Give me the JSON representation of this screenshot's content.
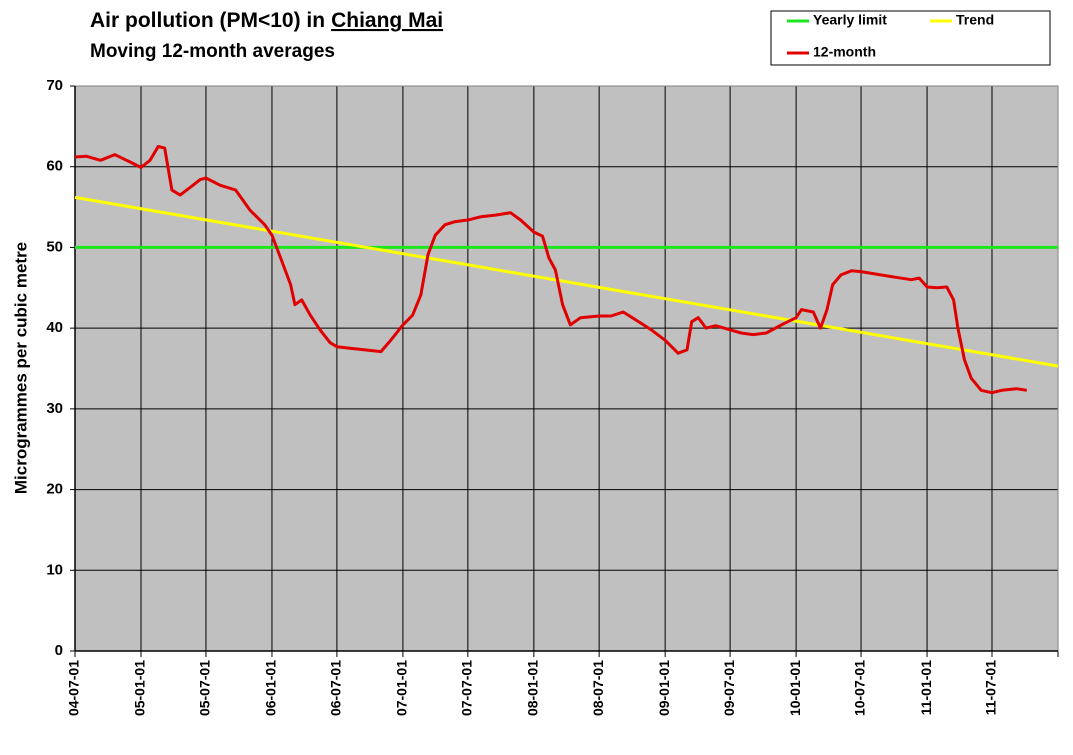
{
  "chart_data": {
    "type": "line",
    "title": "Air pollution (PM<10) in",
    "title_place": "Chiang Mai",
    "subtitle": "Moving 12-month averages",
    "y_label": "Microgrammes per cubic metre",
    "xlim": [
      "04-07-01",
      "12-01-01"
    ],
    "xticks": [
      "04-07-01",
      "05-01-01",
      "05-07-01",
      "06-01-01",
      "06-07-01",
      "07-01-01",
      "07-07-01",
      "08-01-01",
      "08-07-01",
      "09-01-01",
      "09-07-01",
      "10-01-01",
      "10-07-01",
      "11-01-01",
      "11-07-01"
    ],
    "ylim": [
      0,
      70
    ],
    "yticks": [
      0,
      10,
      20,
      30,
      40,
      50,
      60,
      70
    ],
    "grid": true,
    "background": "#c0c0c0",
    "legend": "top-right",
    "series": [
      {
        "name": "Yearly limit",
        "color": "#1ee61e",
        "x": [
          "04-07-01",
          "12-01-01"
        ],
        "values": [
          50,
          50
        ]
      },
      {
        "name": "Trend",
        "color": "#ffff00",
        "x": [
          "04-07-01",
          "12-01-01"
        ],
        "values": [
          56.2,
          35.3
        ]
      },
      {
        "name": "12-month",
        "color": "#e00000",
        "x": [
          "04-07-01",
          "04-08-01",
          "04-09-10",
          "04-10-20",
          "04-12-01",
          "05-01-01",
          "05-01-26",
          "05-02-18",
          "05-03-08",
          "05-03-28",
          "05-04-20",
          "05-05-17",
          "05-06-15",
          "05-07-01",
          "05-08-10",
          "05-09-22",
          "05-11-01",
          "05-12-12",
          "06-01-01",
          "06-01-25",
          "06-02-22",
          "06-03-06",
          "06-03-25",
          "06-04-18",
          "06-05-15",
          "06-06-12",
          "06-07-01",
          "06-08-06",
          "06-09-18",
          "06-11-01",
          "06-11-28",
          "07-01-01",
          "07-01-28",
          "07-02-20",
          "07-03-12",
          "07-04-01",
          "07-04-28",
          "07-05-27",
          "07-07-01",
          "07-08-06",
          "07-09-16",
          "07-10-28",
          "07-11-25",
          "08-01-01",
          "08-01-25",
          "08-02-12",
          "08-03-01",
          "08-03-21",
          "08-04-12",
          "08-05-10",
          "08-07-01",
          "08-08-03",
          "08-09-06",
          "08-10-12",
          "08-11-23",
          "09-01-01",
          "09-02-06",
          "09-03-03",
          "09-03-16",
          "09-04-03",
          "09-04-25",
          "09-05-22",
          "09-07-01",
          "09-08-01",
          "09-09-03",
          "09-10-10",
          "09-11-21",
          "10-01-01",
          "10-01-16",
          "10-02-18",
          "10-03-10",
          "10-03-28",
          "10-04-13",
          "10-05-06",
          "10-06-04",
          "10-07-01",
          "10-08-12",
          "10-10-06",
          "10-11-18",
          "10-12-10",
          "11-01-01",
          "11-01-28",
          "11-02-25",
          "11-03-16",
          "11-03-28",
          "11-04-15",
          "11-05-04",
          "11-06-01",
          "11-07-01",
          "11-07-28",
          "11-09-07",
          "11-10-06"
        ],
        "values": [
          61.2,
          61.3,
          60.8,
          61.5,
          60.6,
          59.9,
          60.8,
          62.5,
          62.3,
          57.1,
          56.5,
          57.4,
          58.4,
          58.6,
          57.7,
          57.1,
          54.6,
          52.8,
          51.5,
          48.7,
          45.4,
          42.9,
          43.5,
          41.6,
          39.8,
          38.2,
          37.7,
          37.5,
          37.3,
          37.1,
          38.5,
          40.4,
          41.6,
          44.1,
          49.1,
          51.5,
          52.8,
          53.2,
          53.4,
          53.8,
          54.0,
          54.3,
          53.4,
          51.9,
          51.4,
          48.7,
          47.2,
          42.9,
          40.4,
          41.3,
          41.5,
          41.5,
          42.0,
          41.0,
          39.8,
          38.5,
          36.9,
          37.3,
          40.8,
          41.3,
          40.0,
          40.3,
          39.8,
          39.4,
          39.2,
          39.4,
          40.4,
          41.3,
          42.3,
          42.0,
          40.0,
          42.3,
          45.4,
          46.6,
          47.1,
          47.0,
          46.7,
          46.3,
          46.0,
          46.2,
          45.1,
          45.0,
          45.1,
          43.5,
          40.0,
          36.1,
          33.8,
          32.3,
          32.0,
          32.3,
          32.5,
          32.3
        ]
      }
    ]
  }
}
